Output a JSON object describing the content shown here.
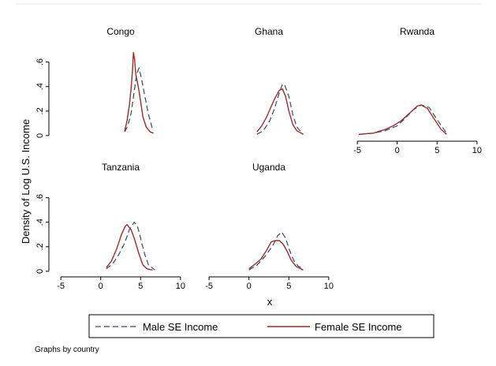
{
  "chart_data": {
    "type": "line",
    "ylabel": "Density of Log U.S. Income",
    "xlabel": "x",
    "xlim": [
      -6,
      11
    ],
    "ylim": [
      -0.02,
      0.72
    ],
    "xticks": [
      -5,
      0,
      5,
      10
    ],
    "yticks": [
      0,
      0.2,
      0.4,
      0.6
    ],
    "ytick_labels": [
      "0",
      ".2",
      ".4",
      ".6"
    ],
    "grid": false,
    "legend": {
      "position": "bottom",
      "entries": [
        {
          "label": "Male SE Income",
          "color": "#2e4a6e",
          "style": "dashed"
        },
        {
          "label": "Female SE Income",
          "color": "#9b2d2d",
          "style": "solid"
        }
      ]
    },
    "note": "Graphs by country",
    "panels": [
      {
        "title": "Congo",
        "series": [
          {
            "name": "Male SE Income",
            "x": [
              3.0,
              3.4,
              3.8,
              4.2,
              4.5,
              4.8,
              5.1,
              5.5,
              6.0,
              6.5
            ],
            "y": [
              0.03,
              0.08,
              0.18,
              0.36,
              0.5,
              0.55,
              0.47,
              0.33,
              0.17,
              0.05
            ]
          },
          {
            "name": "Female SE Income",
            "x": [
              3.0,
              3.3,
              3.6,
              3.8,
              4.0,
              4.1,
              4.25,
              4.4,
              4.7,
              5.0,
              5.3,
              5.7,
              6.2,
              6.6
            ],
            "y": [
              0.04,
              0.12,
              0.25,
              0.38,
              0.55,
              0.68,
              0.62,
              0.5,
              0.4,
              0.28,
              0.15,
              0.07,
              0.03,
              0.02
            ]
          }
        ]
      },
      {
        "title": "Ghana",
        "series": [
          {
            "name": "Male SE Income",
            "x": [
              1.0,
              1.8,
              2.6,
              3.2,
              3.8,
              4.2,
              4.5,
              5.0,
              5.5,
              6.0,
              6.8
            ],
            "y": [
              0.01,
              0.04,
              0.12,
              0.22,
              0.35,
              0.42,
              0.41,
              0.32,
              0.17,
              0.07,
              0.01
            ]
          },
          {
            "name": "Female SE Income",
            "x": [
              1.0,
              1.6,
              2.2,
              2.8,
              3.3,
              3.8,
              4.2,
              4.6,
              5.0,
              5.5,
              6.0,
              6.8
            ],
            "y": [
              0.03,
              0.08,
              0.15,
              0.24,
              0.31,
              0.37,
              0.38,
              0.32,
              0.2,
              0.09,
              0.04,
              0.01
            ]
          }
        ]
      },
      {
        "title": "Rwanda",
        "series": [
          {
            "name": "Male SE Income",
            "x": [
              -4.8,
              -3,
              -1.5,
              0,
              1,
              2,
              3,
              4,
              5,
              6.2
            ],
            "y": [
              0.01,
              0.02,
              0.04,
              0.08,
              0.14,
              0.21,
              0.25,
              0.23,
              0.13,
              0.02
            ]
          },
          {
            "name": "Female SE Income",
            "x": [
              -4.8,
              -3,
              -1.5,
              -0.5,
              0.5,
              1.5,
              2.5,
              3,
              3.8,
              4.5,
              5.5,
              6.2
            ],
            "y": [
              0.01,
              0.02,
              0.05,
              0.08,
              0.12,
              0.18,
              0.24,
              0.25,
              0.22,
              0.15,
              0.05,
              0.01
            ]
          }
        ]
      },
      {
        "title": "Tanzania",
        "series": [
          {
            "name": "Male SE Income",
            "x": [
              0.7,
              1.5,
              2.3,
              3.0,
              3.6,
              4.2,
              4.6,
              5.0,
              5.5,
              6.0,
              6.8
            ],
            "y": [
              0.02,
              0.06,
              0.14,
              0.23,
              0.34,
              0.4,
              0.37,
              0.27,
              0.14,
              0.05,
              0.01
            ]
          },
          {
            "name": "Female SE Income",
            "x": [
              0.7,
              1.3,
              2.0,
              2.6,
              3.1,
              3.3,
              3.8,
              4.2,
              4.8,
              5.3,
              5.8,
              6.5
            ],
            "y": [
              0.03,
              0.08,
              0.18,
              0.3,
              0.37,
              0.38,
              0.34,
              0.27,
              0.14,
              0.05,
              0.02,
              0.01
            ]
          }
        ]
      },
      {
        "title": "Uganda",
        "series": [
          {
            "name": "Male SE Income",
            "x": [
              0,
              1.0,
              2.0,
              3.0,
              3.6,
              4.1,
              4.6,
              5.1,
              5.6,
              6.2,
              6.8
            ],
            "y": [
              0.01,
              0.05,
              0.12,
              0.21,
              0.29,
              0.32,
              0.27,
              0.17,
              0.09,
              0.04,
              0.02
            ]
          },
          {
            "name": "Female SE Income",
            "x": [
              0,
              0.8,
              1.5,
              2.2,
              2.8,
              3.3,
              3.8,
              4.3,
              4.8,
              5.3,
              5.9,
              6.8
            ],
            "y": [
              0.02,
              0.06,
              0.1,
              0.17,
              0.24,
              0.25,
              0.25,
              0.22,
              0.16,
              0.09,
              0.04,
              0.01
            ]
          }
        ]
      }
    ]
  }
}
